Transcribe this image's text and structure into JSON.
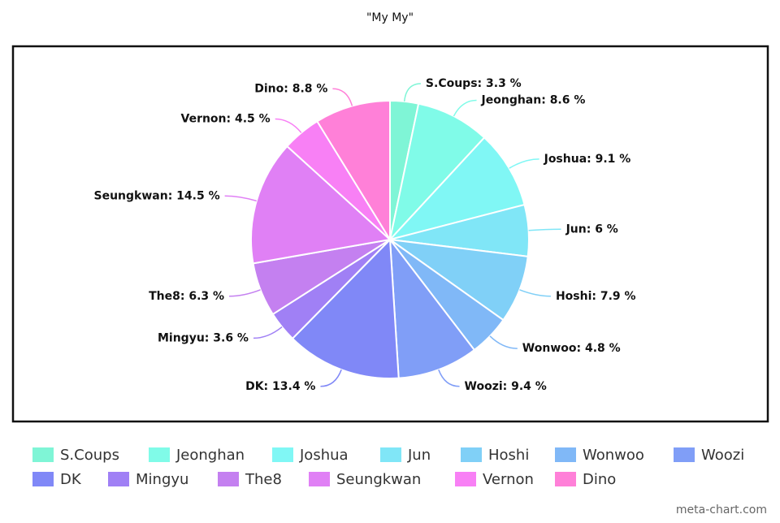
{
  "chart_data": {
    "type": "pie",
    "title": "\"My My\"",
    "categories": [
      "S.Coups",
      "Jeonghan",
      "Joshua",
      "Jun",
      "Hoshi",
      "Wonwoo",
      "Woozi",
      "DK",
      "Mingyu",
      "The8",
      "Seungkwan",
      "Vernon",
      "Dino"
    ],
    "values": [
      3.3,
      8.6,
      9.1,
      6,
      7.9,
      4.8,
      9.4,
      13.4,
      3.6,
      6.3,
      14.5,
      4.5,
      8.8
    ],
    "value_labels": [
      "S.Coups: 3.3 %",
      "Jeonghan: 8.6 %",
      "Joshua: 9.1 %",
      "Jun: 6 %",
      "Hoshi: 7.9 %",
      "Wonwoo: 4.8 %",
      "Woozi: 9.4 %",
      "DK: 13.4 %",
      "Mingyu: 3.6 %",
      "The8: 6.3 %",
      "Seungkwan: 14.5 %",
      "Vernon: 4.5 %",
      "Dino: 8.8 %"
    ],
    "colors": [
      "#7ff5d6",
      "#80fbe8",
      "#80f7f5",
      "#80e6f7",
      "#80d0f7",
      "#80b8f7",
      "#809ef7",
      "#8088f7",
      "#a080f5",
      "#c480f0",
      "#e080f5",
      "#f880f5",
      "#ff80d8"
    ],
    "watermark": "meta-chart.com"
  }
}
